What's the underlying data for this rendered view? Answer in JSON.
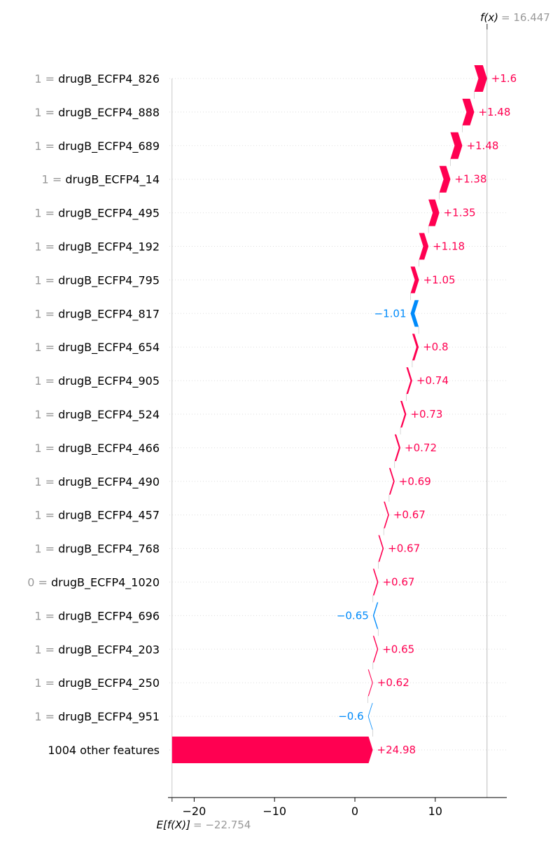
{
  "colors": {
    "positive": "#ff0051",
    "negative": "#008bfb",
    "muted": "#999999",
    "grid": "#dddddd"
  },
  "chart_data": {
    "type": "waterfall",
    "base_value": -22.754,
    "output_value": 16.447,
    "base_label": "E[f(X)]",
    "base_value_label": "= −22.754",
    "output_label": "f(x)",
    "output_value_label": "= 16.447",
    "xlim": [
      -23,
      18
    ],
    "xticks": [
      -20,
      -10,
      0,
      10
    ],
    "tick_labels": [
      "−20",
      "−10",
      "0",
      "10"
    ],
    "features": [
      {
        "value": "1 =",
        "name": "drugB_ECFP4_826",
        "contribution": 1.6,
        "label": "+1.6"
      },
      {
        "value": "1 =",
        "name": "drugB_ECFP4_888",
        "contribution": 1.48,
        "label": "+1.48"
      },
      {
        "value": "1 =",
        "name": "drugB_ECFP4_689",
        "contribution": 1.48,
        "label": "+1.48"
      },
      {
        "value": "1 =",
        "name": "drugB_ECFP4_14",
        "contribution": 1.38,
        "label": "+1.38"
      },
      {
        "value": "1 =",
        "name": "drugB_ECFP4_495",
        "contribution": 1.35,
        "label": "+1.35"
      },
      {
        "value": "1 =",
        "name": "drugB_ECFP4_192",
        "contribution": 1.18,
        "label": "+1.18"
      },
      {
        "value": "1 =",
        "name": "drugB_ECFP4_795",
        "contribution": 1.05,
        "label": "+1.05"
      },
      {
        "value": "1 =",
        "name": "drugB_ECFP4_817",
        "contribution": -1.01,
        "label": "−1.01"
      },
      {
        "value": "1 =",
        "name": "drugB_ECFP4_654",
        "contribution": 0.8,
        "label": "+0.8"
      },
      {
        "value": "1 =",
        "name": "drugB_ECFP4_905",
        "contribution": 0.74,
        "label": "+0.74"
      },
      {
        "value": "1 =",
        "name": "drugB_ECFP4_524",
        "contribution": 0.73,
        "label": "+0.73"
      },
      {
        "value": "1 =",
        "name": "drugB_ECFP4_466",
        "contribution": 0.72,
        "label": "+0.72"
      },
      {
        "value": "1 =",
        "name": "drugB_ECFP4_490",
        "contribution": 0.69,
        "label": "+0.69"
      },
      {
        "value": "1 =",
        "name": "drugB_ECFP4_457",
        "contribution": 0.67,
        "label": "+0.67"
      },
      {
        "value": "1 =",
        "name": "drugB_ECFP4_768",
        "contribution": 0.67,
        "label": "+0.67"
      },
      {
        "value": "0 =",
        "name": "drugB_ECFP4_1020",
        "contribution": 0.67,
        "label": "+0.67"
      },
      {
        "value": "1 =",
        "name": "drugB_ECFP4_696",
        "contribution": -0.65,
        "label": "−0.65"
      },
      {
        "value": "1 =",
        "name": "drugB_ECFP4_203",
        "contribution": 0.65,
        "label": "+0.65"
      },
      {
        "value": "1 =",
        "name": "drugB_ECFP4_250",
        "contribution": 0.62,
        "label": "+0.62"
      },
      {
        "value": "1 =",
        "name": "drugB_ECFP4_951",
        "contribution": -0.6,
        "label": "−0.6"
      },
      {
        "value": "",
        "name": "1004 other features",
        "contribution": 24.98,
        "label": "+24.98"
      }
    ]
  }
}
